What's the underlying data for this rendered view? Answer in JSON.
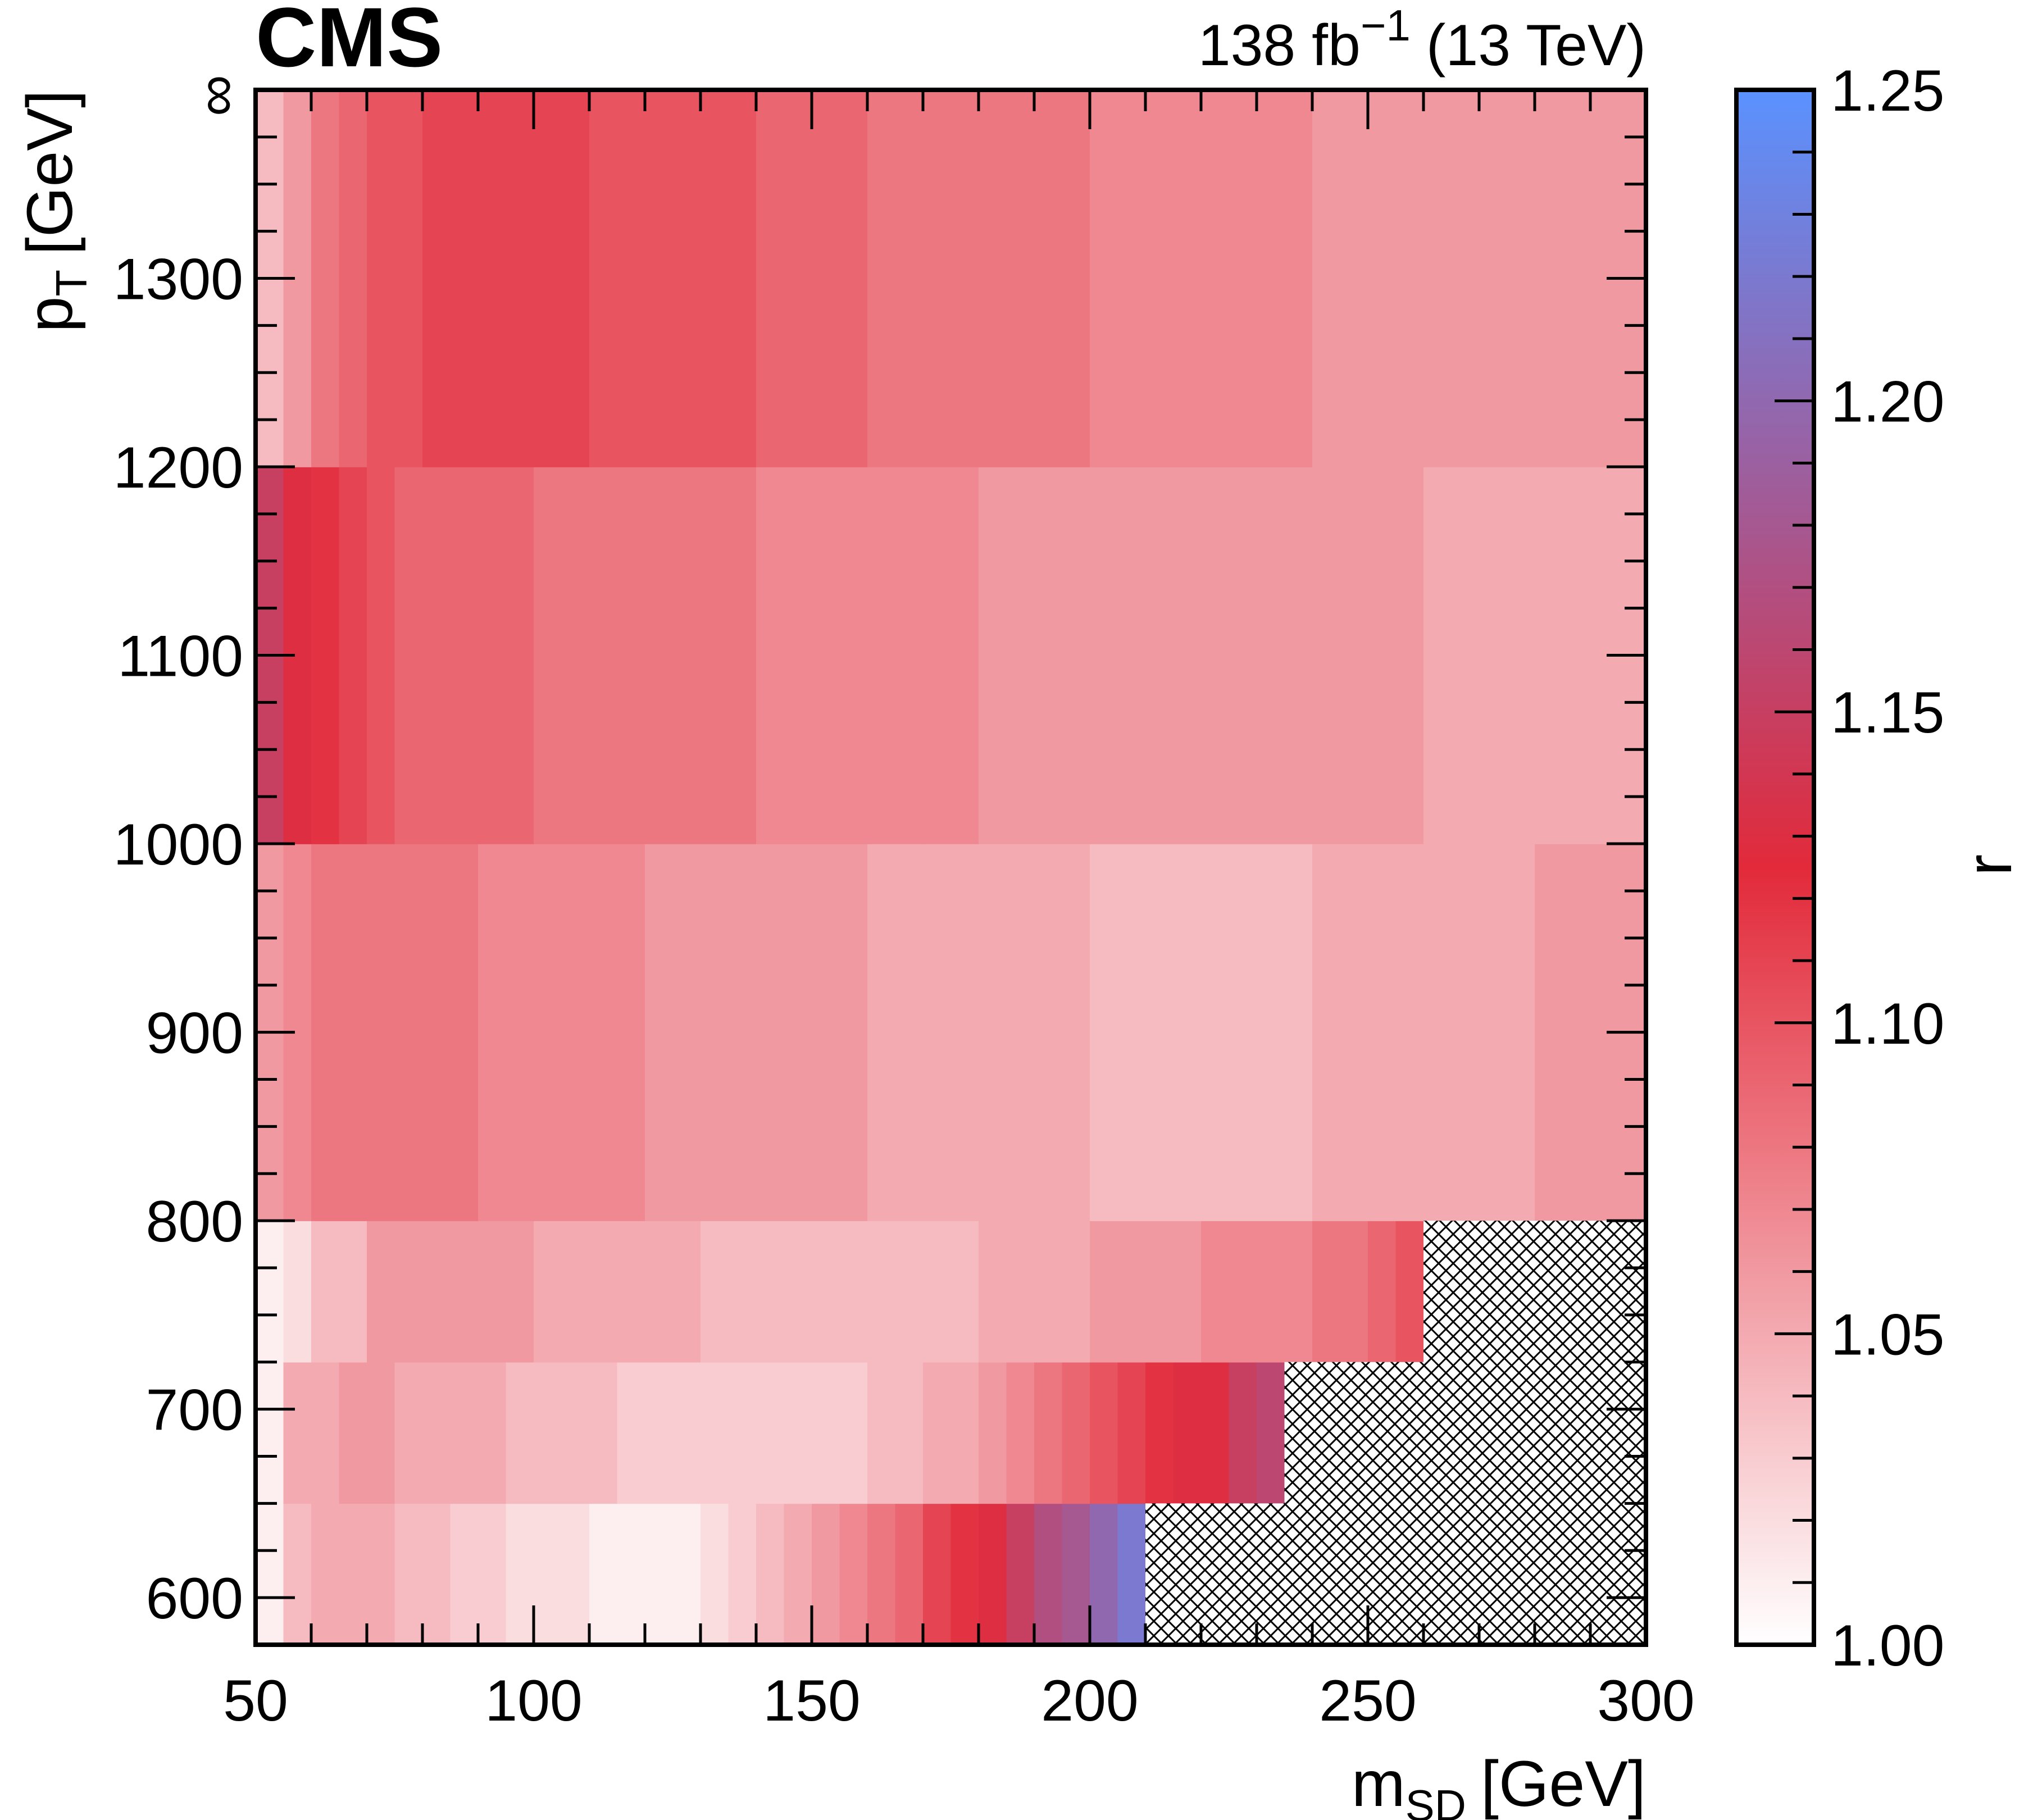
{
  "header": {
    "experiment": "CMS",
    "lumi_value": "138 fb",
    "lumi_exp": "−1",
    "energy": "(13 TeV)"
  },
  "axes": {
    "x_title_main": "m",
    "x_title_sub": "SD",
    "x_title_unit": "[GeV]",
    "y_title_main": "p",
    "y_title_sub": "T",
    "y_title_unit": "[GeV]",
    "z_title": "r",
    "y_top_label": "∞"
  },
  "chart_data": {
    "type": "heatmap",
    "title": "",
    "xlabel": "m_SD [GeV]",
    "ylabel": "p_T [GeV]",
    "zlabel": "r",
    "xlim": [
      50,
      300
    ],
    "ylim": [
      575,
      1400
    ],
    "zlim": [
      1.0,
      1.25
    ],
    "x_ticks": [
      50,
      100,
      150,
      200,
      250,
      300
    ],
    "y_ticks": [
      600,
      700,
      800,
      900,
      1000,
      1100,
      1200,
      1300
    ],
    "y_bin_labels": [
      "600",
      "700",
      "800",
      "900",
      "1000",
      "1100",
      "1200",
      "1300",
      "∞"
    ],
    "z_ticks": [
      "1.00",
      "1.05",
      "1.10",
      "1.15",
      "1.20",
      "1.25"
    ],
    "pt_bins": [
      {
        "pt_low": 575,
        "pt_high": 650,
        "m_edges": [
          50,
          55,
          60,
          65,
          70,
          75,
          80,
          85,
          90,
          95,
          100,
          110,
          120,
          130,
          135,
          140,
          145,
          150,
          155,
          160,
          165,
          170,
          175,
          180,
          185,
          190,
          195,
          200,
          205,
          210
        ],
        "r": [
          1.01,
          1.04,
          1.05,
          1.05,
          1.05,
          1.04,
          1.04,
          1.03,
          1.03,
          1.02,
          1.02,
          1.01,
          1.01,
          1.02,
          1.03,
          1.04,
          1.05,
          1.06,
          1.07,
          1.08,
          1.09,
          1.11,
          1.12,
          1.13,
          1.15,
          1.17,
          1.18,
          1.2,
          1.22
        ]
      },
      {
        "pt_low": 650,
        "pt_high": 725,
        "m_edges": [
          50,
          55,
          65,
          75,
          85,
          95,
          105,
          115,
          125,
          135,
          145,
          160,
          170,
          175,
          180,
          185,
          190,
          195,
          200,
          205,
          210,
          215,
          220,
          225,
          230,
          235
        ],
        "r": [
          1.01,
          1.05,
          1.06,
          1.05,
          1.05,
          1.04,
          1.04,
          1.03,
          1.03,
          1.03,
          1.03,
          1.04,
          1.05,
          1.05,
          1.06,
          1.07,
          1.08,
          1.09,
          1.1,
          1.11,
          1.12,
          1.13,
          1.13,
          1.15,
          1.16
        ]
      },
      {
        "pt_low": 725,
        "pt_high": 800,
        "m_edges": [
          50,
          55,
          60,
          70,
          80,
          90,
          100,
          110,
          120,
          130,
          140,
          150,
          160,
          180,
          190,
          200,
          210,
          220,
          230,
          240,
          245,
          250,
          255,
          260
        ],
        "r": [
          1.01,
          1.02,
          1.04,
          1.06,
          1.06,
          1.06,
          1.05,
          1.05,
          1.05,
          1.04,
          1.04,
          1.04,
          1.04,
          1.05,
          1.05,
          1.06,
          1.06,
          1.07,
          1.07,
          1.08,
          1.08,
          1.09,
          1.1
        ]
      },
      {
        "pt_low": 800,
        "pt_high": 1000,
        "m_edges": [
          50,
          55,
          60,
          70,
          80,
          90,
          100,
          110,
          120,
          130,
          140,
          150,
          160,
          170,
          180,
          200,
          220,
          240,
          260,
          280,
          300
        ],
        "r": [
          1.06,
          1.07,
          1.08,
          1.08,
          1.08,
          1.07,
          1.07,
          1.07,
          1.06,
          1.06,
          1.06,
          1.06,
          1.05,
          1.05,
          1.05,
          1.04,
          1.04,
          1.05,
          1.05,
          1.06
        ]
      },
      {
        "pt_low": 1000,
        "pt_high": 1200,
        "m_edges": [
          50,
          55,
          60,
          65,
          70,
          75,
          80,
          90,
          100,
          110,
          120,
          130,
          140,
          150,
          160,
          170,
          180,
          200,
          210,
          220,
          240,
          260,
          280,
          300
        ],
        "r": [
          1.15,
          1.13,
          1.12,
          1.11,
          1.1,
          1.09,
          1.09,
          1.09,
          1.08,
          1.08,
          1.08,
          1.08,
          1.07,
          1.07,
          1.07,
          1.07,
          1.06,
          1.06,
          1.06,
          1.06,
          1.06,
          1.05,
          1.05
        ]
      },
      {
        "pt_low": 1200,
        "pt_high": 1400,
        "m_edges": [
          50,
          55,
          60,
          65,
          70,
          75,
          80,
          90,
          100,
          110,
          120,
          130,
          140,
          150,
          160,
          170,
          180,
          200,
          220,
          240,
          260,
          280,
          300
        ],
        "r": [
          1.04,
          1.06,
          1.08,
          1.09,
          1.1,
          1.1,
          1.11,
          1.11,
          1.11,
          1.1,
          1.1,
          1.1,
          1.09,
          1.09,
          1.08,
          1.08,
          1.08,
          1.07,
          1.07,
          1.06,
          1.06,
          1.06
        ]
      }
    ],
    "hatched_regions": [
      {
        "m_low": 210,
        "m_high": 300,
        "pt_low": 575,
        "pt_high": 650
      },
      {
        "m_low": 235,
        "m_high": 300,
        "pt_low": 650,
        "pt_high": 725
      },
      {
        "m_low": 260,
        "m_high": 300,
        "pt_low": 725,
        "pt_high": 800
      }
    ],
    "colormap": [
      "#ffffff",
      "#e22a3a",
      "#5a92ff"
    ]
  }
}
